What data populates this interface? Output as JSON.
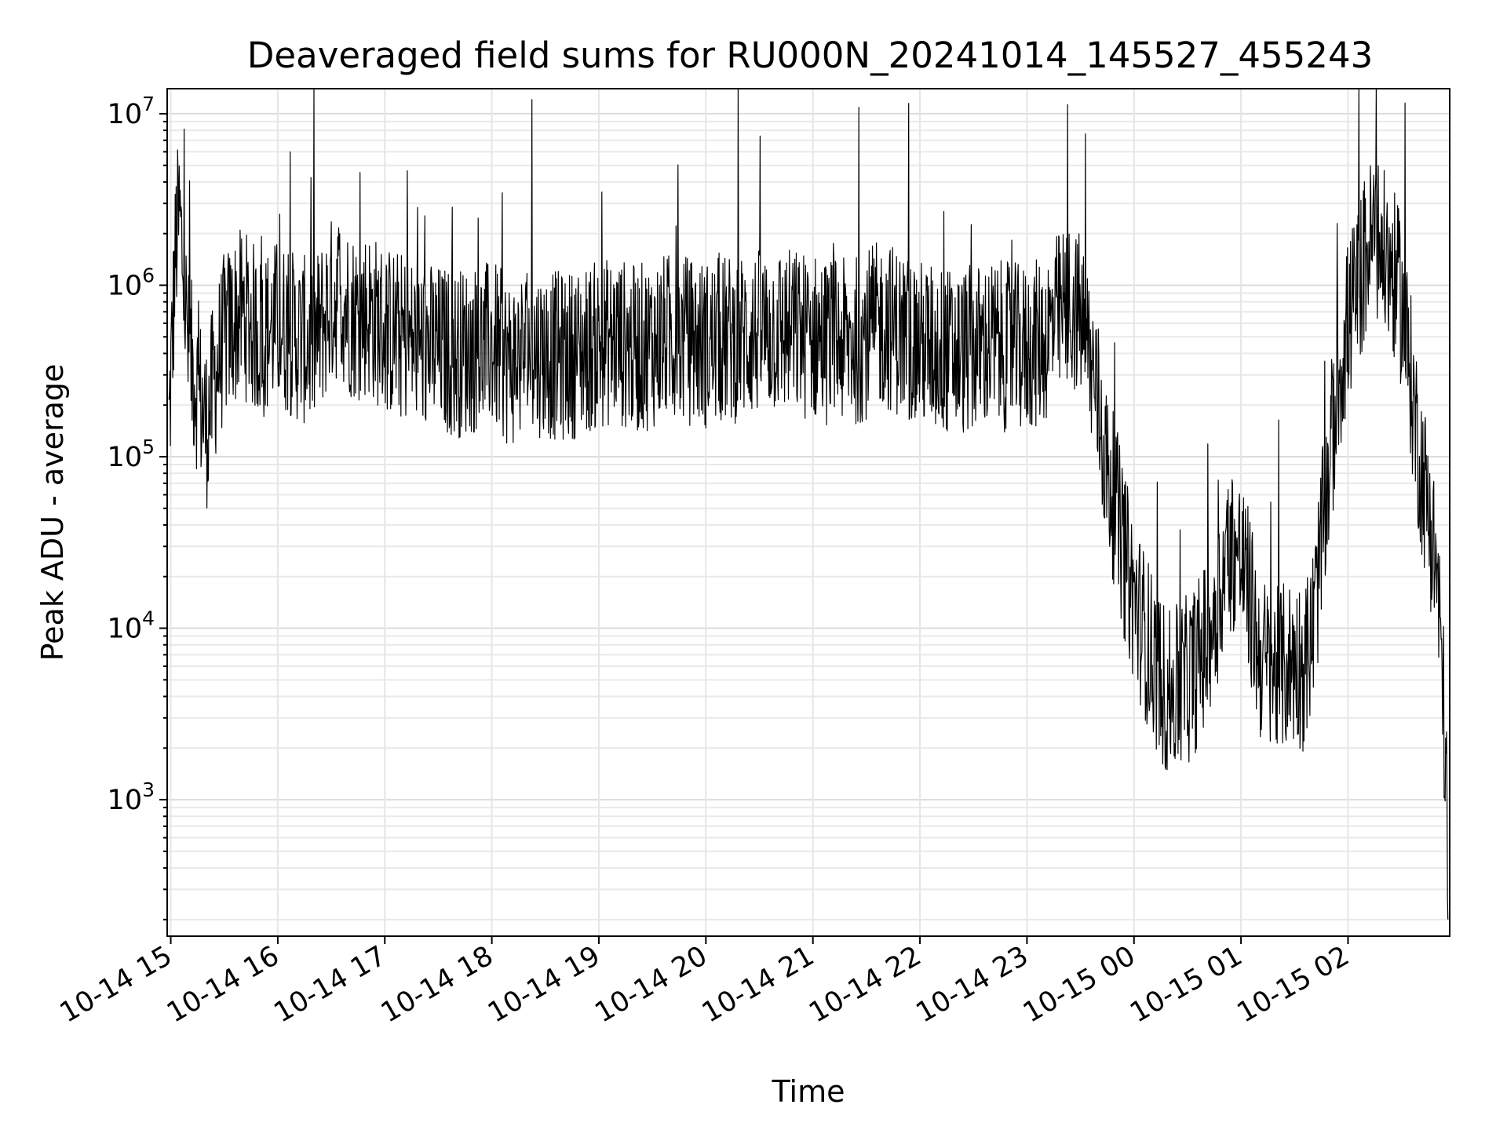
{
  "chart_data": {
    "type": "line",
    "title": "Deaveraged field sums for RU000N_20241014_145527_455243",
    "xlabel": "Time",
    "ylabel": "Peak ADU - average",
    "yscale": "log",
    "ylim": [
      160,
      14000000
    ],
    "xlim": [
      "2024-10-14 14:58",
      "2024-10-15 02:57"
    ],
    "grid": true,
    "x_tick_labels": [
      "10-14 15",
      "10-14 16",
      "10-14 17",
      "10-14 18",
      "10-14 19",
      "10-14 20",
      "10-14 21",
      "10-14 22",
      "10-14 23",
      "10-15 00",
      "10-15 01",
      "10-15 02"
    ],
    "y_ticks": [
      {
        "value": 1000,
        "base": "10",
        "exp": "3"
      },
      {
        "value": 10000,
        "base": "10",
        "exp": "4"
      },
      {
        "value": 100000,
        "base": "10",
        "exp": "5"
      },
      {
        "value": 1000000,
        "base": "10",
        "exp": "6"
      },
      {
        "value": 10000000,
        "base": "10",
        "exp": "7"
      }
    ],
    "series": [
      {
        "color": "#000000",
        "x": [
          "2024-10-14 14:59",
          "2024-10-14 15:03",
          "2024-10-14 15:05",
          "2024-10-14 15:10",
          "2024-10-14 15:15",
          "2024-10-14 15:20",
          "2024-10-14 15:25",
          "2024-10-14 15:30",
          "2024-10-14 15:35",
          "2024-10-14 15:40",
          "2024-10-14 15:45",
          "2024-10-14 15:50",
          "2024-10-14 15:55",
          "2024-10-14 16:00",
          "2024-10-14 16:10",
          "2024-10-14 16:20",
          "2024-10-14 16:30",
          "2024-10-14 16:35",
          "2024-10-14 16:40",
          "2024-10-14 16:45",
          "2024-10-14 16:50",
          "2024-10-14 17:00",
          "2024-10-14 17:20",
          "2024-10-14 17:40",
          "2024-10-14 18:00",
          "2024-10-14 18:10",
          "2024-10-14 18:20",
          "2024-10-14 18:40",
          "2024-10-14 19:00",
          "2024-10-14 19:10",
          "2024-10-14 19:20",
          "2024-10-14 19:40",
          "2024-10-14 20:00",
          "2024-10-14 20:20",
          "2024-10-14 20:40",
          "2024-10-14 21:00",
          "2024-10-14 21:20",
          "2024-10-14 21:40",
          "2024-10-14 22:00",
          "2024-10-14 22:20",
          "2024-10-14 22:40",
          "2024-10-14 23:00",
          "2024-10-14 23:10",
          "2024-10-14 23:15",
          "2024-10-14 23:20",
          "2024-10-14 23:25",
          "2024-10-14 23:30",
          "2024-10-14 23:35",
          "2024-10-14 23:40",
          "2024-10-14 23:45",
          "2024-10-14 23:50",
          "2024-10-14 23:55",
          "2024-10-15 00:00",
          "2024-10-15 00:05",
          "2024-10-15 00:10",
          "2024-10-15 00:15",
          "2024-10-15 00:20",
          "2024-10-15 00:25",
          "2024-10-15 00:30",
          "2024-10-15 00:35",
          "2024-10-15 00:40",
          "2024-10-15 00:45",
          "2024-10-15 00:50",
          "2024-10-15 00:55",
          "2024-10-15 01:00",
          "2024-10-15 01:05",
          "2024-10-15 01:10",
          "2024-10-15 01:15",
          "2024-10-15 01:20",
          "2024-10-15 01:25",
          "2024-10-15 01:30",
          "2024-10-15 01:35",
          "2024-10-15 01:40",
          "2024-10-15 01:45",
          "2024-10-15 01:50",
          "2024-10-15 01:55",
          "2024-10-15 02:00",
          "2024-10-15 02:05",
          "2024-10-15 02:10",
          "2024-10-15 02:15",
          "2024-10-15 02:20",
          "2024-10-15 02:25",
          "2024-10-15 02:30",
          "2024-10-15 02:35",
          "2024-10-15 02:40",
          "2024-10-15 02:45",
          "2024-10-15 02:50",
          "2024-10-15 02:53",
          "2024-10-15 02:55",
          "2024-10-15 02:56"
        ],
        "y": [
          150000,
          1800000,
          2500000,
          400000,
          250000,
          150000,
          300000,
          500000,
          600000,
          700000,
          600000,
          500000,
          550000,
          600000,
          500000,
          450000,
          800000,
          900000,
          700000,
          650000,
          700000,
          550000,
          450000,
          400000,
          450000,
          350000,
          420000,
          380000,
          450000,
          480000,
          420000,
          500000,
          450000,
          500000,
          550000,
          500000,
          450000,
          600000,
          450000,
          400000,
          450000,
          420000,
          480000,
          600000,
          700000,
          750000,
          650000,
          400000,
          200000,
          80000,
          50000,
          25000,
          15000,
          10000,
          7000,
          5000,
          4000,
          4500,
          5000,
          6000,
          8000,
          12000,
          20000,
          30000,
          25000,
          15000,
          7000,
          6000,
          5500,
          6000,
          6500,
          6000,
          9000,
          30000,
          100000,
          300000,
          600000,
          900000,
          1500000,
          2000000,
          1500000,
          1200000,
          800000,
          300000,
          100000,
          50000,
          20000,
          5000,
          1500,
          200
        ]
      }
    ]
  }
}
